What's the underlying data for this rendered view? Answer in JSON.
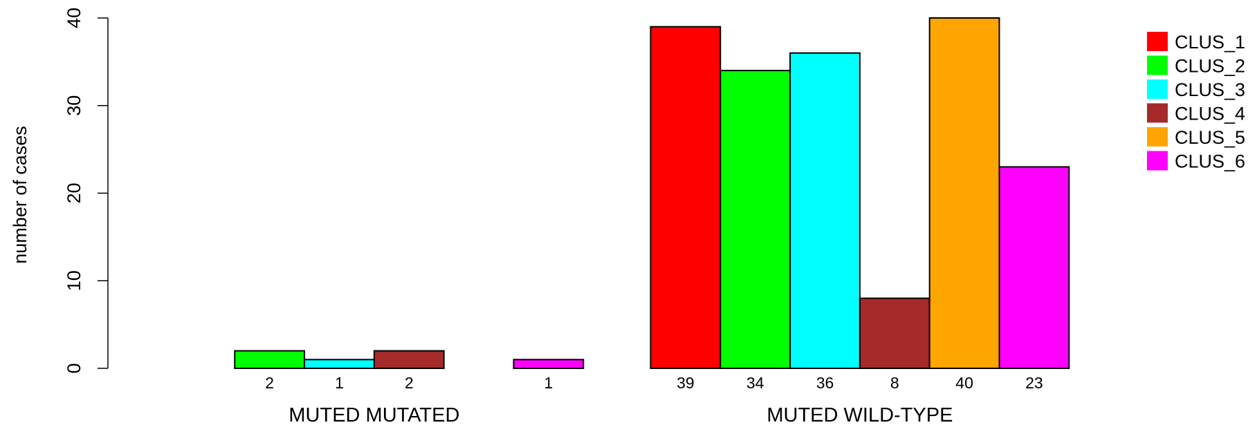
{
  "chart_data": {
    "type": "bar",
    "ylabel": "number of cases",
    "ylim": [
      0,
      40
    ],
    "yticks": [
      0,
      10,
      20,
      30,
      40
    ],
    "series_names": [
      "CLUS_1",
      "CLUS_2",
      "CLUS_3",
      "CLUS_4",
      "CLUS_5",
      "CLUS_6"
    ],
    "colors": [
      "#ff0000",
      "#00ff00",
      "#00ffff",
      "#a52a2a",
      "#ffa500",
      "#ff00ff"
    ],
    "groups": [
      {
        "label": "MUTED MUTATED",
        "values": [
          0,
          2,
          1,
          2,
          0,
          1
        ],
        "value_labels": [
          "",
          "2",
          "1",
          "2",
          "",
          "1"
        ]
      },
      {
        "label": "MUTED WILD-TYPE",
        "values": [
          39,
          34,
          36,
          8,
          40,
          23
        ],
        "value_labels": [
          "39",
          "34",
          "36",
          "8",
          "40",
          "23"
        ]
      }
    ],
    "legend": {
      "position": "top-right",
      "entries": [
        "CLUS_1",
        "CLUS_2",
        "CLUS_3",
        "CLUS_4",
        "CLUS_5",
        "CLUS_6"
      ]
    }
  }
}
